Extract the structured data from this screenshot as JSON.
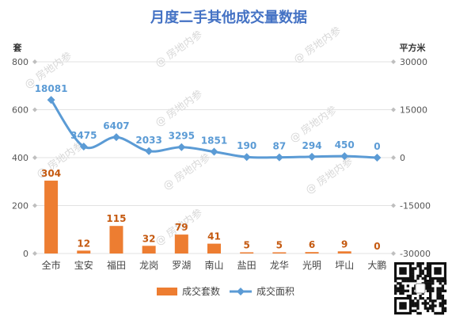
{
  "chart_data": {
    "type": "bar",
    "title": "月度二手其他成交量数据",
    "categories": [
      "全市",
      "宝安",
      "福田",
      "龙岗",
      "罗湖",
      "南山",
      "盐田",
      "龙华",
      "光明",
      "坪山",
      "大鹏"
    ],
    "left_axis": {
      "unit": "套",
      "ylim": [
        0,
        800
      ],
      "ticks": [
        "0",
        "200",
        "400",
        "600",
        "800"
      ]
    },
    "right_axis": {
      "unit": "平方米",
      "ylim": [
        -30000,
        30000
      ],
      "ticks": [
        "-30000",
        "-15000",
        "0",
        "15000",
        "30000"
      ]
    },
    "series": [
      {
        "name": "成交套数",
        "type": "bar",
        "axis": "left",
        "color": "#ed7d31",
        "values": [
          304,
          12,
          115,
          32,
          79,
          41,
          5,
          5,
          6,
          9,
          0
        ],
        "labels": [
          "304",
          "12",
          "115",
          "32",
          "79",
          "41",
          "5",
          "5",
          "6",
          "9",
          "0"
        ]
      },
      {
        "name": "成交面积",
        "type": "line",
        "axis": "right",
        "color": "#5b9bd5",
        "values": [
          18081,
          3475,
          6407,
          2033,
          3295,
          1851,
          190,
          87,
          294,
          450,
          0
        ],
        "labels": [
          "18081",
          "3475",
          "6407",
          "2033",
          "3295",
          "1851",
          "190",
          "87",
          "294",
          "450",
          "0"
        ]
      }
    ],
    "grid": true,
    "legend_position": "bottom"
  },
  "colors": {
    "title": "#4472c4",
    "grid": "#e2e2e2",
    "bar_label": "#c55a11",
    "line_label": "#5b9bd5"
  },
  "watermark": "房地内参",
  "qr_icon": "qr-code-icon"
}
